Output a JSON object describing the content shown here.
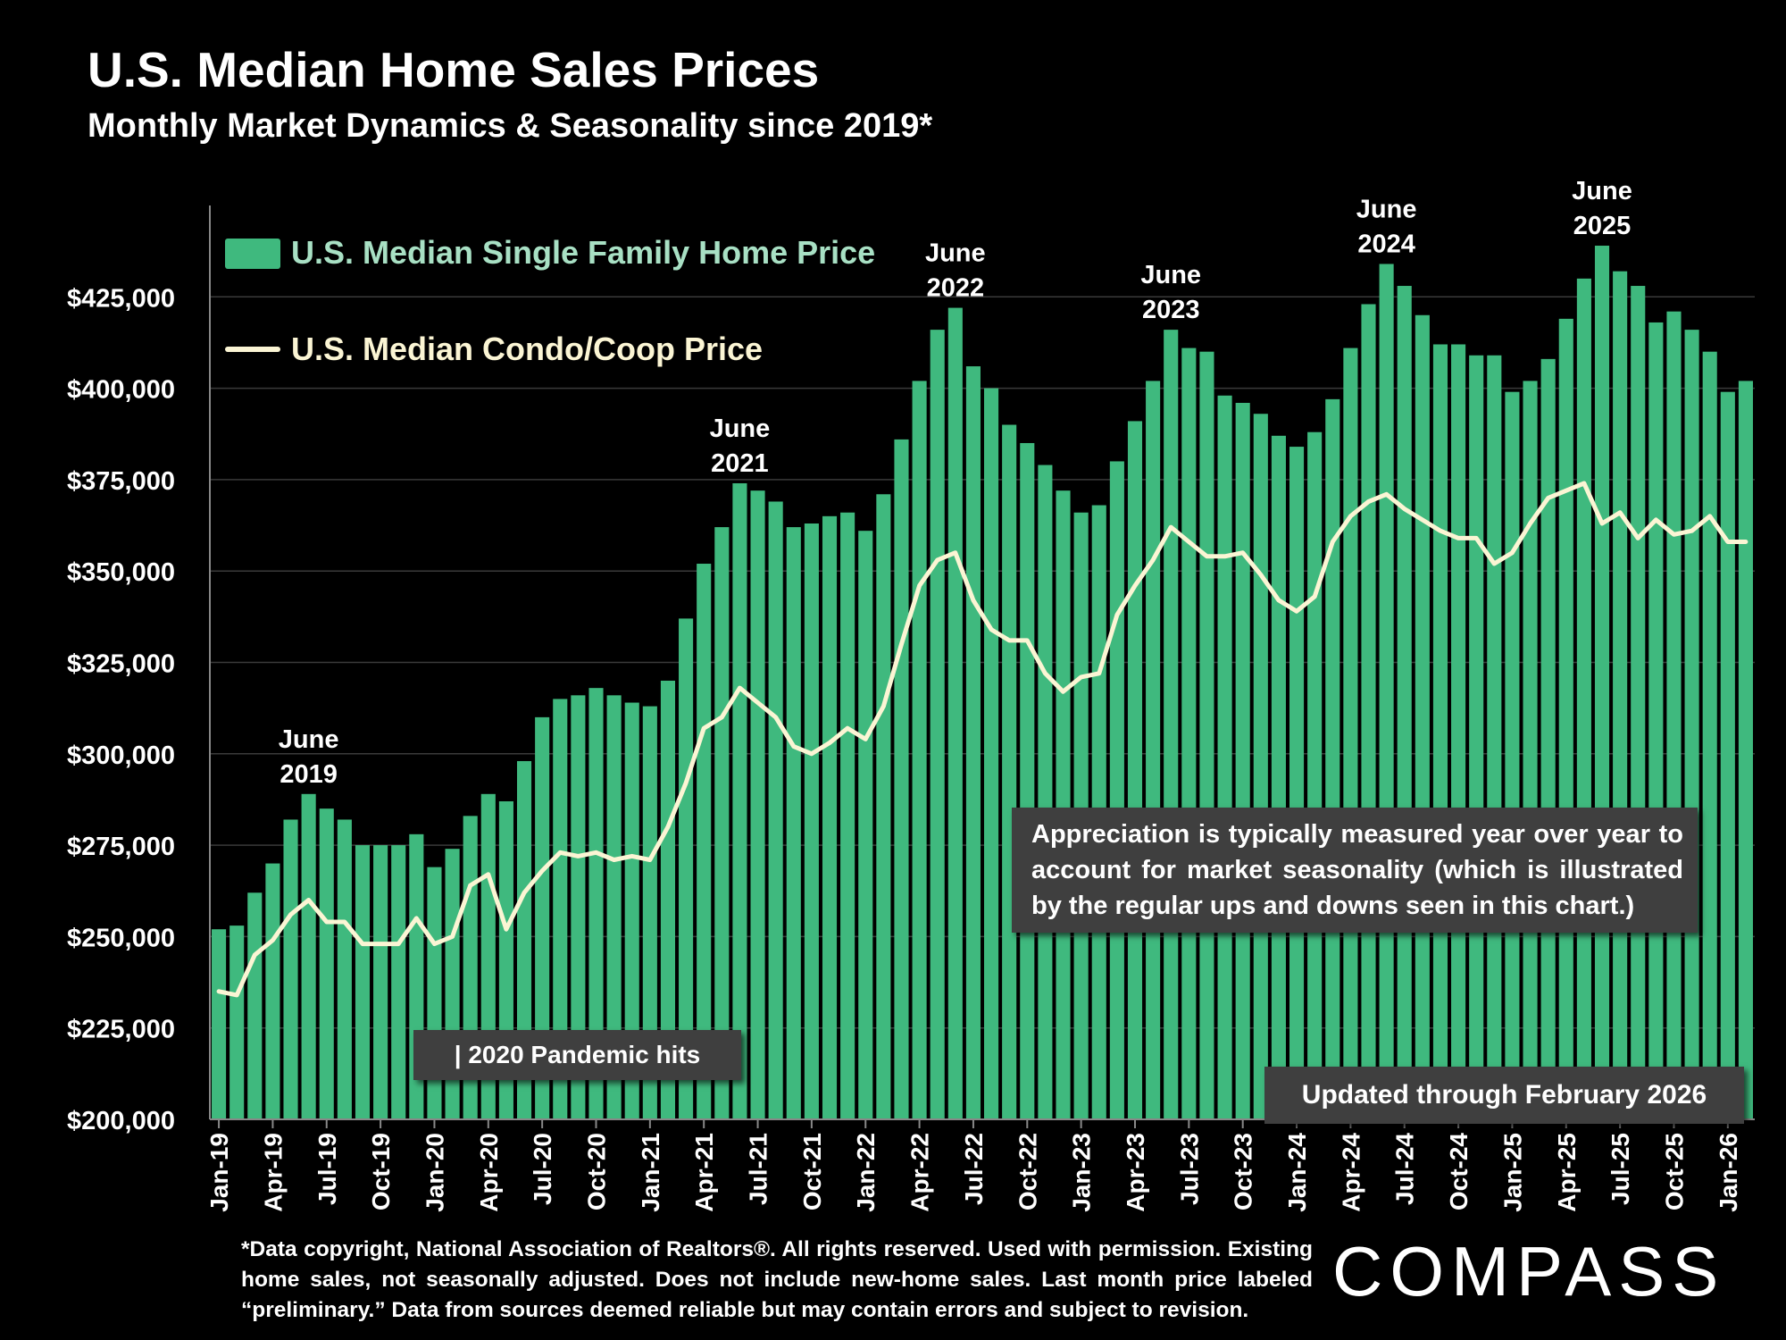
{
  "header": {
    "title": "U.S. Median Home Sales Prices",
    "subtitle": "Monthly Market Dynamics & Seasonality since 2019*"
  },
  "annotations": {
    "note": "Appreciation is typically measured year over year to account for market seasonality (which is illustrated by the regular ups and downs seen in this chart.)",
    "pandemic": "| 2020 Pandemic hits",
    "updated": "Updated through February 2026",
    "peak_labels": [
      {
        "month": "June",
        "year": "2019",
        "index": 5
      },
      {
        "month": "June",
        "year": "2021",
        "index": 29
      },
      {
        "month": "June",
        "year": "2022",
        "index": 41
      },
      {
        "month": "June",
        "year": "2023",
        "index": 53
      },
      {
        "month": "June",
        "year": "2024",
        "index": 65
      },
      {
        "month": "June",
        "year": "2025",
        "index": 77
      }
    ]
  },
  "footer": {
    "footnote": "*Data copyright, National Association of Realtors®. All rights reserved. Used with permission. Existing home sales, not seasonally adjusted. Does not include new-home sales. Last month price labeled “preliminary.” Data from sources deemed reliable but may contain errors and subject to revision.",
    "logo": "COMPASS"
  },
  "colors": {
    "background": "#000000",
    "bar": "#3fb97e",
    "line": "#fbf5d4",
    "legend_bar_text": "#a8e0c4",
    "legend_line_text": "#fbf5d4",
    "annotation_box": "#3f3f3f"
  },
  "chart_data": {
    "type": "bar",
    "x_tick_labels": [
      "Jan-19",
      "Apr-19",
      "Jul-19",
      "Oct-19",
      "Jan-20",
      "Apr-20",
      "Jul-20",
      "Oct-20",
      "Jan-21",
      "Apr-21",
      "Jul-21",
      "Oct-21",
      "Jan-22",
      "Apr-22",
      "Jul-22",
      "Oct-22",
      "Jan-23",
      "Apr-23",
      "Jul-23",
      "Oct-23",
      "Jan-24",
      "Apr-24",
      "Jul-24",
      "Oct-24",
      "Jan-25",
      "Apr-25",
      "Jul-25",
      "Oct-25",
      "Jan-26"
    ],
    "y_tick_labels": [
      "$200,000",
      "$225,000",
      "$250,000",
      "$275,000",
      "$300,000",
      "$325,000",
      "$350,000",
      "$375,000",
      "$400,000",
      "$425,000"
    ],
    "ylim": [
      200000,
      450000
    ],
    "grid": true,
    "legend_position": "top-left",
    "series": [
      {
        "name": "U.S. Median Single Family Home Price",
        "type": "bar",
        "values": [
          252000,
          253000,
          262000,
          270000,
          282000,
          289000,
          285000,
          282000,
          275000,
          275000,
          275000,
          278000,
          269000,
          274000,
          283000,
          289000,
          287000,
          298000,
          310000,
          315000,
          316000,
          318000,
          316000,
          314000,
          313000,
          320000,
          337000,
          352000,
          362000,
          374000,
          372000,
          369000,
          362000,
          363000,
          365000,
          366000,
          361000,
          371000,
          386000,
          402000,
          416000,
          422000,
          406000,
          400000,
          390000,
          385000,
          379000,
          372000,
          366000,
          368000,
          380000,
          391000,
          402000,
          416000,
          411000,
          410000,
          398000,
          396000,
          393000,
          387000,
          384000,
          388000,
          397000,
          411000,
          423000,
          434000,
          428000,
          420000,
          412000,
          412000,
          409000,
          409000,
          399000,
          402000,
          408000,
          419000,
          430000,
          439000,
          432000,
          428000,
          418000,
          421000,
          416000,
          410000,
          399000,
          402000
        ]
      },
      {
        "name": "U.S. Median Condo/Coop Price",
        "type": "line",
        "values": [
          235000,
          234000,
          245000,
          249000,
          256000,
          260000,
          254000,
          254000,
          248000,
          248000,
          248000,
          255000,
          248000,
          250000,
          264000,
          267000,
          252000,
          262000,
          268000,
          273000,
          272000,
          273000,
          271000,
          272000,
          271000,
          280000,
          292000,
          307000,
          310000,
          318000,
          314000,
          310000,
          302000,
          300000,
          303000,
          307000,
          304000,
          313000,
          330000,
          346000,
          353000,
          355000,
          342000,
          334000,
          331000,
          331000,
          322000,
          317000,
          321000,
          322000,
          338000,
          346000,
          353000,
          362000,
          358000,
          354000,
          354000,
          355000,
          349000,
          342000,
          339000,
          343000,
          358000,
          365000,
          369000,
          371000,
          367000,
          364000,
          361000,
          359000,
          359000,
          352000,
          355000,
          363000,
          370000,
          372000,
          374000,
          363000,
          366000,
          359000,
          364000,
          360000,
          361000,
          365000,
          358000,
          358000
        ]
      }
    ]
  }
}
